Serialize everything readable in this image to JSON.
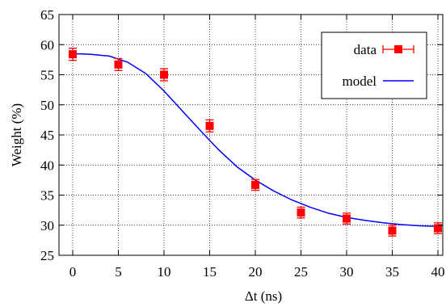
{
  "chart_data": {
    "type": "scatter",
    "xlabel": "Δt (ns)",
    "ylabel": "Weight (%)",
    "xlim": [
      -1,
      41
    ],
    "ylim": [
      25,
      65
    ],
    "xticks": [
      0,
      5,
      10,
      15,
      20,
      25,
      30,
      35,
      40
    ],
    "yticks": [
      25,
      30,
      35,
      40,
      45,
      50,
      55,
      60,
      65
    ],
    "grid": true,
    "legend_position": "top-right",
    "series": [
      {
        "name": "data",
        "kind": "points-with-errorbars",
        "color": "#ff0000",
        "x": [
          0,
          5,
          10,
          15,
          20,
          25,
          30,
          35,
          40
        ],
        "y": [
          58.4,
          56.7,
          55.0,
          46.5,
          36.7,
          32.1,
          31.1,
          29.1,
          29.5
        ],
        "yerr": [
          1.0,
          1.0,
          1.0,
          1.0,
          0.9,
          0.9,
          0.9,
          0.9,
          0.9
        ]
      },
      {
        "name": "model",
        "kind": "line",
        "color": "#0000ff",
        "x": [
          0,
          2,
          4,
          6,
          8,
          10,
          12,
          14,
          16,
          18,
          20,
          22,
          24,
          26,
          28,
          30,
          32,
          34,
          36,
          38,
          40
        ],
        "y": [
          58.5,
          58.4,
          58.1,
          57.1,
          55.2,
          52.3,
          49.0,
          45.7,
          42.5,
          39.7,
          37.5,
          35.7,
          34.2,
          33.0,
          32.0,
          31.3,
          30.8,
          30.4,
          30.1,
          29.9,
          29.8
        ]
      }
    ]
  }
}
